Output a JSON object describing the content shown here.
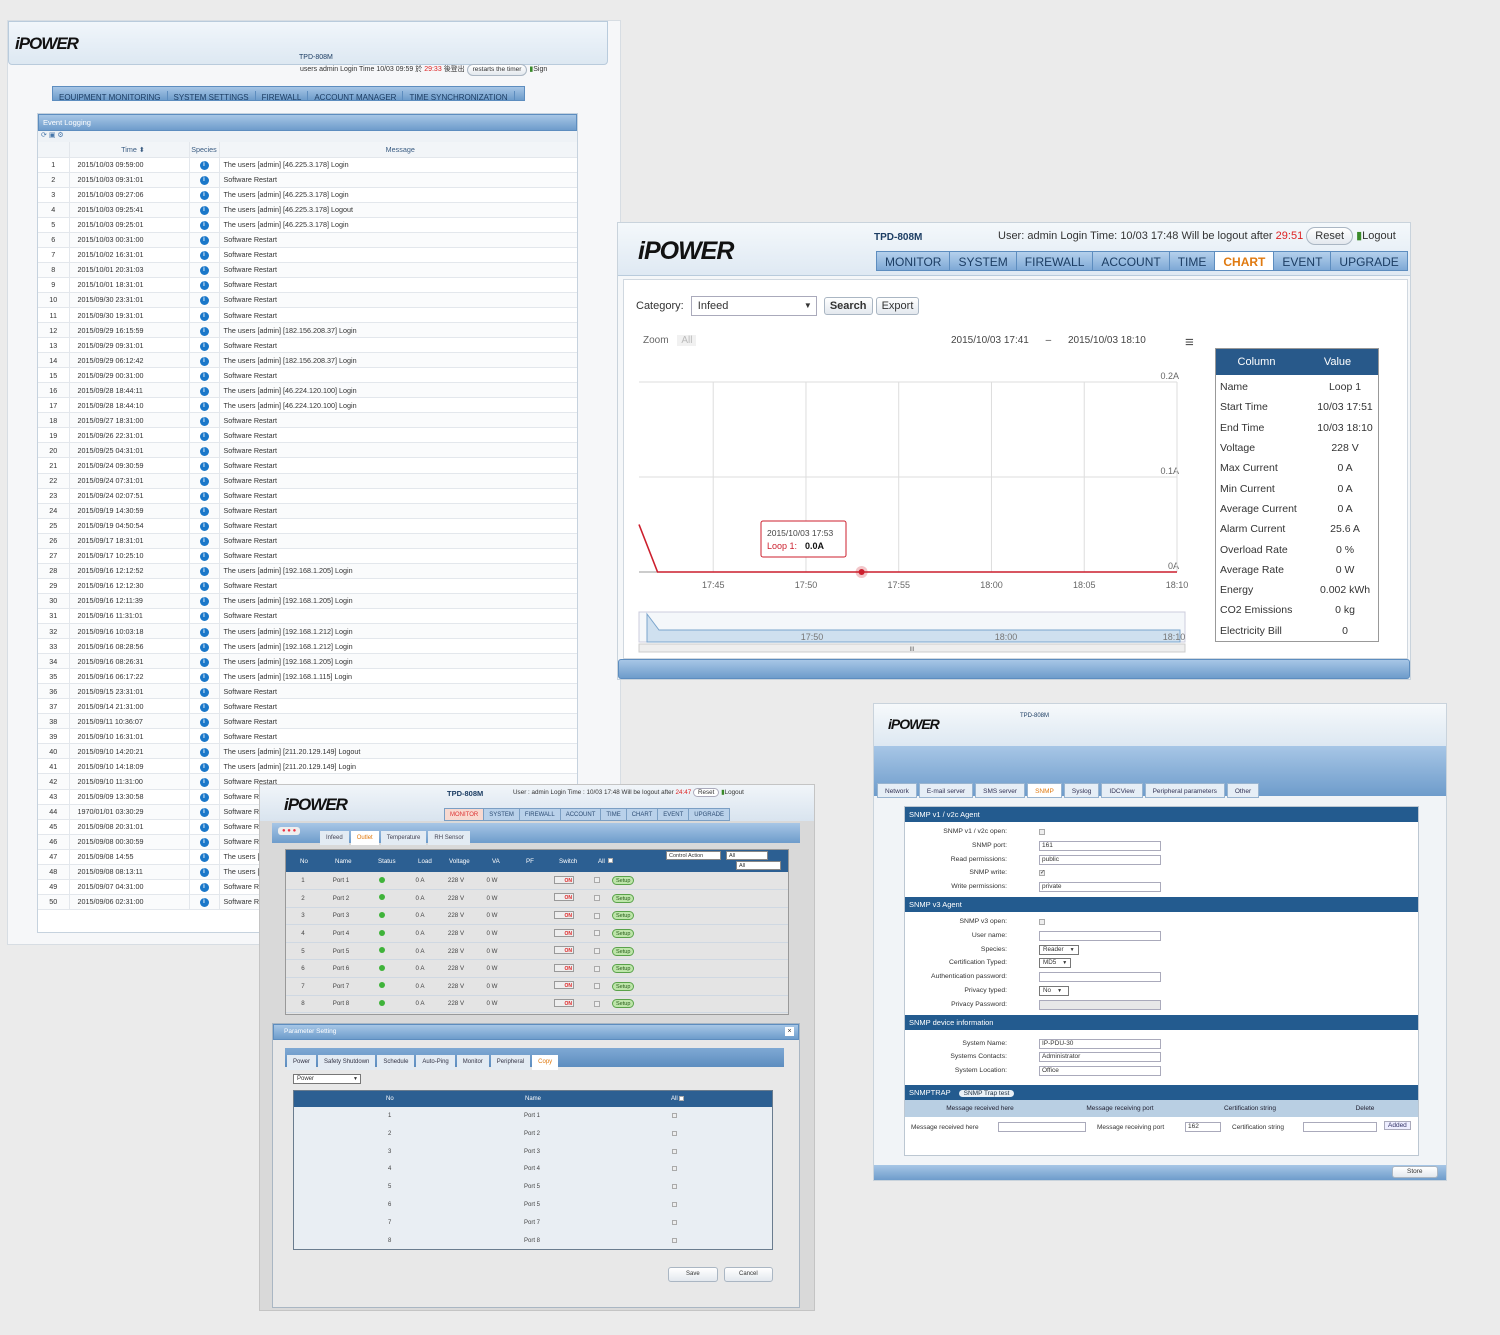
{
  "brand": "iPOWER",
  "event_window": {
    "device": "TPD-808M",
    "status": {
      "users_label": "users",
      "user": "admin",
      "login_label": "Login Time",
      "login_time": "10/03 09:59",
      "after": "於",
      "countdown": "29:33",
      "after2": "後登出"
    },
    "restart_button": "restarts the timer",
    "sign_link": "Sign",
    "tabs": [
      "EQUIPMENT MONITORING",
      "SYSTEM SETTINGS",
      "FIREWALL",
      "ACCOUNT MANAGER",
      "TIME SYNCHRONIZATION"
    ],
    "panel_title": "Event Logging",
    "columns": {
      "time": "Time",
      "species": "Species",
      "message": "Message"
    },
    "rows": [
      [
        "1",
        "2015/10/03 09:59:00",
        "The users [admin] [46.225.3.178] Login"
      ],
      [
        "2",
        "2015/10/03 09:31:01",
        "Software Restart"
      ],
      [
        "3",
        "2015/10/03 09:27:06",
        "The users [admin] [46.225.3.178] Login"
      ],
      [
        "4",
        "2015/10/03 09:25:41",
        "The users [admin] [46.225.3.178] Logout"
      ],
      [
        "5",
        "2015/10/03 09:25:01",
        "The users [admin] [46.225.3.178] Login"
      ],
      [
        "6",
        "2015/10/03 00:31:00",
        "Software Restart"
      ],
      [
        "7",
        "2015/10/02 16:31:01",
        "Software Restart"
      ],
      [
        "8",
        "2015/10/01 20:31:03",
        "Software Restart"
      ],
      [
        "9",
        "2015/10/01 18:31:01",
        "Software Restart"
      ],
      [
        "10",
        "2015/09/30 23:31:01",
        "Software Restart"
      ],
      [
        "11",
        "2015/09/30 19:31:01",
        "Software Restart"
      ],
      [
        "12",
        "2015/09/29 16:15:59",
        "The users [admin] [182.156.208.37] Login"
      ],
      [
        "13",
        "2015/09/29 09:31:01",
        "Software Restart"
      ],
      [
        "14",
        "2015/09/29 06:12:42",
        "The users [admin] [182.156.208.37] Login"
      ],
      [
        "15",
        "2015/09/29 00:31:00",
        "Software Restart"
      ],
      [
        "16",
        "2015/09/28 18:44:11",
        "The users [admin] [46.224.120.100] Login"
      ],
      [
        "17",
        "2015/09/28 18:44:10",
        "The users [admin] [46.224.120.100] Login"
      ],
      [
        "18",
        "2015/09/27 18:31:00",
        "Software Restart"
      ],
      [
        "19",
        "2015/09/26 22:31:01",
        "Software Restart"
      ],
      [
        "20",
        "2015/09/25 04:31:01",
        "Software Restart"
      ],
      [
        "21",
        "2015/09/24 09:30:59",
        "Software Restart"
      ],
      [
        "22",
        "2015/09/24 07:31:01",
        "Software Restart"
      ],
      [
        "23",
        "2015/09/24 02:07:51",
        "Software Restart"
      ],
      [
        "24",
        "2015/09/19 14:30:59",
        "Software Restart"
      ],
      [
        "25",
        "2015/09/19 04:50:54",
        "Software Restart"
      ],
      [
        "26",
        "2015/09/17 18:31:01",
        "Software Restart"
      ],
      [
        "27",
        "2015/09/17 10:25:10",
        "Software Restart"
      ],
      [
        "28",
        "2015/09/16 12:12:52",
        "The users [admin] [192.168.1.205] Login"
      ],
      [
        "29",
        "2015/09/16 12:12:30",
        "Software Restart"
      ],
      [
        "30",
        "2015/09/16 12:11:39",
        "The users [admin] [192.168.1.205] Login"
      ],
      [
        "31",
        "2015/09/16 11:31:01",
        "Software Restart"
      ],
      [
        "32",
        "2015/09/16 10:03:18",
        "The users [admin] [192.168.1.212] Login"
      ],
      [
        "33",
        "2015/09/16 08:28:56",
        "The users [admin] [192.168.1.212] Login"
      ],
      [
        "34",
        "2015/09/16 08:26:31",
        "The users [admin] [192.168.1.205] Login"
      ],
      [
        "35",
        "2015/09/16 06:17:22",
        "The users [admin] [192.168.1.115] Login"
      ],
      [
        "36",
        "2015/09/15 23:31:01",
        "Software Restart"
      ],
      [
        "37",
        "2015/09/14 21:31:00",
        "Software Restart"
      ],
      [
        "38",
        "2015/09/11 10:36:07",
        "Software Restart"
      ],
      [
        "39",
        "2015/09/10 16:31:01",
        "Software Restart"
      ],
      [
        "40",
        "2015/09/10 14:20:21",
        "The users [admin] [211.20.129.149] Logout"
      ],
      [
        "41",
        "2015/09/10 14:18:09",
        "The users [admin] [211.20.129.149] Login"
      ],
      [
        "42",
        "2015/09/10 11:31:00",
        "Software Restart"
      ],
      [
        "43",
        "2015/09/09 13:30:58",
        "Software Restart"
      ],
      [
        "44",
        "1970/01/01 03:30:29",
        "Software Restart"
      ],
      [
        "45",
        "2015/09/08 20:31:01",
        "Software Restart"
      ],
      [
        "46",
        "2015/09/08 00:30:59",
        "Software Restart"
      ],
      [
        "47",
        "2015/09/08 14:55",
        "The users [admin] |"
      ],
      [
        "48",
        "2015/09/08 08:13:11",
        "The users [admin] |"
      ],
      [
        "49",
        "2015/09/07 04:31:00",
        "Software Restart"
      ],
      [
        "50",
        "2015/09/06 02:31:00",
        "Software Restart"
      ]
    ]
  },
  "chart_window": {
    "device": "TPD-808M",
    "user_label": "User:",
    "user": "admin",
    "login_label": "Login Time:",
    "login_time": "10/03 17:48",
    "logout_label": "Will be logout after",
    "countdown": "29:51",
    "reset_button": "Reset",
    "logout_link": "Logout",
    "tabs": [
      "MONITOR",
      "SYSTEM",
      "FIREWALL",
      "ACCOUNT",
      "TIME",
      "CHART",
      "EVENT",
      "UPGRADE"
    ],
    "active_tab": "CHART",
    "category_label": "Category:",
    "category_value": "Infeed",
    "search_button": "Search",
    "export_button": "Export",
    "zoom_label": "Zoom",
    "zoom_all": "All",
    "range_from": "2015/10/03 17:41",
    "range_sep": "–",
    "range_to": "2015/10/03 18:10",
    "tooltip": {
      "time": "2015/10/03 17:53",
      "series": "Loop 1:",
      "value": "0.0A"
    },
    "nav_labels": [
      "17:50",
      "18:00",
      "18:10"
    ],
    "nav_scroll": "III",
    "table_header": {
      "column": "Column",
      "value": "Value"
    },
    "table": [
      [
        "Name",
        "Loop 1"
      ],
      [
        "Start Time",
        "10/03 17:51"
      ],
      [
        "End Time",
        "10/03 18:10"
      ],
      [
        "Voltage",
        "228 V"
      ],
      [
        "Max Current",
        "0 A"
      ],
      [
        "Min Current",
        "0 A"
      ],
      [
        "Average Current",
        "0 A"
      ],
      [
        "Alarm Current",
        "25.6 A"
      ],
      [
        "Overload Rate",
        "0 %"
      ],
      [
        "Average Rate",
        "0 W"
      ],
      [
        "Energy",
        "0.002 kWh"
      ],
      [
        "CO2 Emissions",
        "0 kg"
      ],
      [
        "Electricity Bill",
        "0"
      ]
    ]
  },
  "chart_data": {
    "type": "line",
    "x": [
      "17:41",
      "17:42",
      "17:45",
      "17:50",
      "17:53",
      "17:55",
      "18:00",
      "18:05",
      "18:10"
    ],
    "y": [
      0.05,
      0,
      0,
      0,
      0,
      0,
      0,
      0,
      0
    ],
    "x_tick_labels": [
      "17:45",
      "17:50",
      "17:55",
      "18:00",
      "18:05",
      "18:10"
    ],
    "y_tick_labels": [
      "0.2A",
      "0.1A",
      "0A"
    ],
    "ylim": [
      0,
      0.2
    ],
    "color": "#cc1f2d",
    "grid": true
  },
  "outlet_window": {
    "device": "TPD-808M",
    "user_label": "User : admin",
    "login": "Login Time : 10/03 17:48",
    "logout_label": "Will be logout after",
    "countdown": "24:47",
    "reset_button": "Reset",
    "logout_link": "Logout",
    "tabs": [
      "MONITOR",
      "SYSTEM",
      "FIREWALL",
      "ACCOUNT",
      "TIME",
      "CHART",
      "EVENT",
      "UPGRADE"
    ],
    "sub_tabs": [
      "Infeed",
      "Outlet",
      "Temperature",
      "RH Sensor"
    ],
    "status_glyph": "● ● ●",
    "columns": [
      "No",
      "Name",
      "Status",
      "Load",
      "Voltage",
      "VA",
      "PF",
      "Switch",
      "All"
    ],
    "control_action": "Control Action",
    "control_all": "All",
    "control_all2": "All",
    "on_label": "ON",
    "setup_label": "Setup",
    "rows": [
      [
        "1",
        "Port 1",
        "0 A",
        "228 V",
        "0 W"
      ],
      [
        "2",
        "Port 2",
        "0 A",
        "228 V",
        "0 W"
      ],
      [
        "3",
        "Port 3",
        "0 A",
        "228 V",
        "0 W"
      ],
      [
        "4",
        "Port 4",
        "0 A",
        "228 V",
        "0 W"
      ],
      [
        "5",
        "Port 5",
        "0 A",
        "228 V",
        "0 W"
      ],
      [
        "6",
        "Port 6",
        "0 A",
        "228 V",
        "0 W"
      ],
      [
        "7",
        "Port 7",
        "0 A",
        "228 V",
        "0 W"
      ],
      [
        "8",
        "Port 8",
        "0 A",
        "228 V",
        "0 W"
      ]
    ],
    "param_title": "Parameter Setting",
    "param_tabs": [
      "Power",
      "Safety Shutdown",
      "Schedule",
      "Auto-Ping",
      "Monitor",
      "Peripheral",
      "Copy"
    ],
    "param_select": "Power",
    "copy_columns": [
      "No",
      "Name",
      "All"
    ],
    "copy_rows": [
      [
        "1",
        "Port 1"
      ],
      [
        "2",
        "Port 2"
      ],
      [
        "3",
        "Port 3"
      ],
      [
        "4",
        "Port 4"
      ],
      [
        "5",
        "Port 5"
      ],
      [
        "6",
        "Port 5"
      ],
      [
        "7",
        "Port 7"
      ],
      [
        "8",
        "Port 8"
      ]
    ],
    "save_button": "Save",
    "cancel_button": "Cancel"
  },
  "snmp_window": {
    "device": "TPD-808M",
    "tabs": [
      "Network",
      "E-mail server",
      "SMS server",
      "SNMP",
      "Syslog",
      "IDCView",
      "Peripheral parameters",
      "Other"
    ],
    "active_tab": "SNMP",
    "v1_title": "SNMP v1 / v2c Agent",
    "v1_fields": [
      [
        "SNMP v1 / v2c open:",
        "checkbox",
        ""
      ],
      [
        "SNMP port:",
        "text",
        "161"
      ],
      [
        "Read permissions:",
        "text",
        "public"
      ],
      [
        "SNMP write:",
        "checked",
        ""
      ],
      [
        "Write permissions:",
        "text",
        "private"
      ]
    ],
    "v3_title": "SNMP v3 Agent",
    "v3_fields": [
      [
        "SNMP v3 open:",
        "checkbox",
        ""
      ],
      [
        "User name:",
        "text",
        ""
      ],
      [
        "Species:",
        "select",
        "Reader"
      ],
      [
        "Certification Typed:",
        "select",
        "MD5"
      ],
      [
        "Authentication password:",
        "text",
        ""
      ],
      [
        "Privacy typed:",
        "select",
        "No"
      ],
      [
        "Privacy Password:",
        "disabled",
        ""
      ]
    ],
    "dev_title": "SNMP device information",
    "dev_fields": [
      [
        "System Name:",
        "text",
        "IP-PDU-30"
      ],
      [
        "Systems Contacts:",
        "text",
        "Administrator"
      ],
      [
        "System Location:",
        "text",
        "Office"
      ]
    ],
    "trap_title": "SNMPTRAP",
    "trap_test": "SNMP Trap test",
    "trap_cols": [
      "Message received here",
      "Message receiving port",
      "Certification string",
      "Delete"
    ],
    "trap_row": {
      "received_label": "Message received here",
      "port_label": "Message receiving port",
      "port": "162",
      "cert_label": "Certification string",
      "add": "Added"
    },
    "store_button": "Store"
  }
}
